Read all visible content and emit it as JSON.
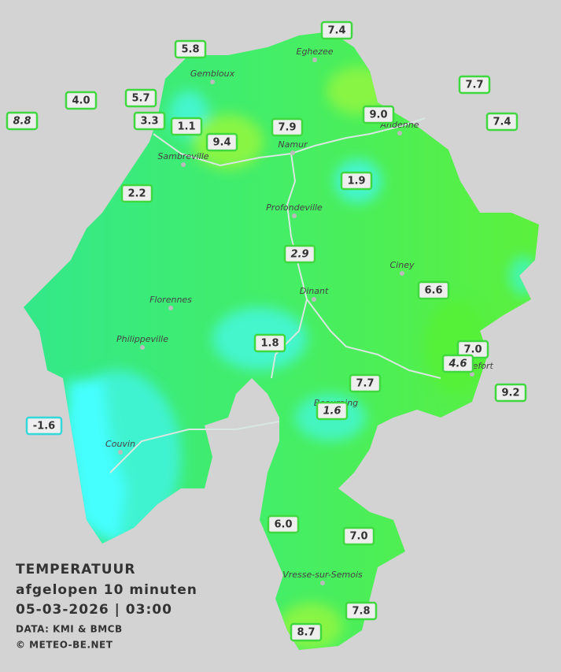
{
  "stations": [
    {
      "label": "7.4",
      "color": "#3fd83f"
    },
    {
      "label": "5.8",
      "color": "#3fd83f"
    },
    {
      "label": "7.7",
      "color": "#3fd83f"
    },
    {
      "label": "4.0",
      "color": "#3fd83f"
    },
    {
      "label": "5.7",
      "color": "#3fd83f"
    },
    {
      "label": "8.8",
      "color": "#3fd83f",
      "italic": true
    },
    {
      "label": "3.3",
      "color": "#3fd83f"
    },
    {
      "label": "1.1",
      "color": "#3fd83f"
    },
    {
      "label": "9.0",
      "color": "#3fd83f"
    },
    {
      "label": "7.4",
      "color": "#3fd83f"
    },
    {
      "label": "7.9",
      "color": "#3fd83f"
    },
    {
      "label": "9.4",
      "color": "#3fd83f"
    },
    {
      "label": "1.9",
      "color": "#3fd83f"
    },
    {
      "label": "2.2",
      "color": "#3fd83f"
    },
    {
      "label": "2.9",
      "color": "#3fd83f",
      "italic": true
    },
    {
      "label": "6.6",
      "color": "#3fd83f"
    },
    {
      "label": "1.8",
      "color": "#3fd83f"
    },
    {
      "label": "7.0",
      "color": "#3fd83f"
    },
    {
      "label": "4.6",
      "color": "#3fd83f",
      "italic": true
    },
    {
      "label": "9.2",
      "color": "#3fd83f"
    },
    {
      "label": "7.7",
      "color": "#3fd83f"
    },
    {
      "label": "1.6",
      "color": "#3fd83f",
      "italic": true
    },
    {
      "label": "-1.6",
      "color": "#33d8d8"
    },
    {
      "label": "6.0",
      "color": "#3fd83f"
    },
    {
      "label": "7.0",
      "color": "#3fd83f"
    },
    {
      "label": "7.8",
      "color": "#3fd83f"
    },
    {
      "label": "8.7",
      "color": "#3fd83f"
    }
  ],
  "places": [
    "Eghezee",
    "Gembloux",
    "Andenne",
    "Namur",
    "Sambreville",
    "Profondeville",
    "Ciney",
    "Dinant",
    "Florennes",
    "Philippeville",
    "Rochefort",
    "Beauraing",
    "Couvin",
    "Vresse-sur-Semois"
  ],
  "caption": {
    "title": "TEMPERATUUR",
    "subtitle": "afgelopen 10 minuten",
    "datetime": "05-03-2026  |  03:00",
    "source": "DATA: KMI & BMCB",
    "copyright": "© METEO-BE.NET"
  }
}
